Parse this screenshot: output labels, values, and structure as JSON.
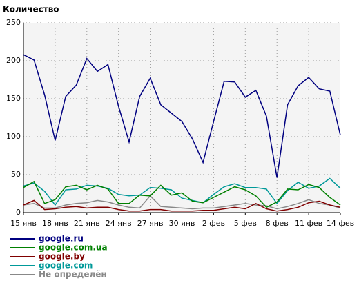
{
  "chart_data": {
    "type": "line",
    "title": "Количество",
    "categories": [
      "15 янв",
      null,
      null,
      "18 янв",
      null,
      null,
      "21 янв",
      null,
      null,
      "24 янв",
      null,
      null,
      "27 янв",
      null,
      null,
      "30 янв",
      null,
      null,
      "2 фев",
      null,
      null,
      "5 фев",
      null,
      null,
      "8 фев",
      null,
      null,
      "11 фев",
      null,
      null,
      "14 фев"
    ],
    "series": [
      {
        "name": "google.ru",
        "color": "#000080",
        "values": [
          208,
          201,
          155,
          95,
          153,
          168,
          203,
          186,
          195,
          140,
          93,
          153,
          177,
          142,
          131,
          120,
          97,
          66,
          120,
          173,
          172,
          152,
          161,
          127,
          46,
          142,
          167,
          178,
          163,
          160,
          102
        ]
      },
      {
        "name": "google.com.ua",
        "color": "#008000",
        "values": [
          33,
          41,
          12,
          17,
          34,
          36,
          30,
          36,
          31,
          12,
          12,
          23,
          22,
          36,
          23,
          26,
          15,
          13,
          20,
          27,
          34,
          30,
          22,
          7,
          14,
          31,
          30,
          37,
          33,
          20,
          10
        ]
      },
      {
        "name": "google.by",
        "color": "#800000",
        "values": [
          10,
          16,
          4,
          5,
          7,
          8,
          6,
          7,
          7,
          4,
          2,
          2,
          4,
          4,
          2,
          2,
          2,
          3,
          3,
          5,
          7,
          5,
          12,
          5,
          2,
          4,
          7,
          13,
          15,
          10,
          7
        ]
      },
      {
        "name": "google.com",
        "color": "#009999",
        "values": [
          35,
          39,
          28,
          10,
          30,
          31,
          36,
          35,
          32,
          24,
          22,
          23,
          33,
          32,
          30,
          19,
          16,
          13,
          24,
          34,
          38,
          33,
          33,
          31,
          12,
          29,
          40,
          32,
          35,
          45,
          32
        ]
      },
      {
        "name": "Не определён",
        "color": "#888888",
        "values": [
          10,
          12,
          6,
          6,
          10,
          12,
          13,
          16,
          14,
          10,
          7,
          6,
          22,
          8,
          7,
          6,
          5,
          6,
          6,
          8,
          10,
          12,
          10,
          9,
          5,
          8,
          12,
          17,
          12,
          10,
          6
        ]
      }
    ],
    "ylim": [
      0,
      250
    ],
    "yticks": [
      0,
      50,
      100,
      150,
      200,
      250
    ],
    "grid": true
  }
}
